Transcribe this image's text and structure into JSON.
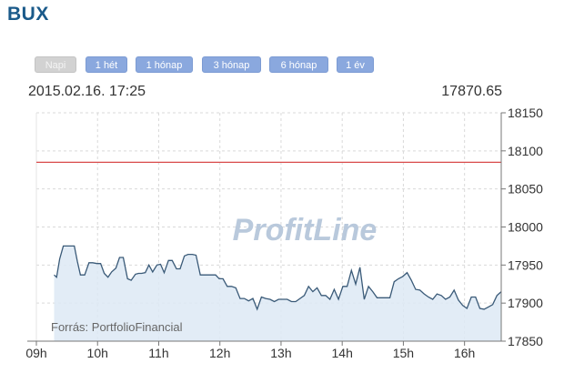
{
  "page_title": "BUX",
  "range_buttons": [
    {
      "label": "Napi",
      "active": true
    },
    {
      "label": "1 hét",
      "active": false
    },
    {
      "label": "1 hónap",
      "active": false
    },
    {
      "label": "3 hónap",
      "active": false
    },
    {
      "label": "6 hónap",
      "active": false
    },
    {
      "label": "1 év",
      "active": false
    }
  ],
  "info": {
    "datetime": "2015.02.16. 17:25",
    "last_value": "17870.65"
  },
  "watermark": "ProfitLine",
  "source_text": "Forrás: PortfolioFinancial",
  "colors": {
    "line": "#3a5a78",
    "area": "#dde9f5",
    "reference_line": "#d94a4a",
    "buttons": "#8aa8de"
  },
  "chart_data": {
    "type": "area",
    "title": "BUX",
    "xlabel": "",
    "ylabel": "",
    "x_ticks": [
      "09h",
      "10h",
      "11h",
      "12h",
      "13h",
      "14h",
      "15h",
      "16h"
    ],
    "x_tick_values": [
      9,
      10,
      11,
      12,
      13,
      14,
      15,
      16
    ],
    "xlim": [
      9,
      16.6
    ],
    "y_ticks": [
      17850,
      17900,
      17950,
      18000,
      18050,
      18100,
      18150
    ],
    "ylim": [
      17850,
      18150
    ],
    "y_axis_side": "right",
    "grid": true,
    "reference_line": 18085,
    "series": [
      {
        "x": [
          9.29,
          9.33,
          9.38,
          9.44,
          9.5,
          9.55,
          9.62,
          9.67,
          9.72,
          9.79,
          9.86,
          9.92,
          9.99,
          10.05,
          10.11,
          10.17,
          10.23,
          10.3,
          10.36,
          10.42,
          10.49,
          10.55,
          10.62,
          10.67,
          10.72,
          10.78,
          10.84,
          10.9,
          10.97,
          11.03,
          11.09,
          11.16,
          11.22,
          11.29,
          11.35,
          11.42,
          11.48,
          11.55,
          11.61,
          11.68,
          11.74,
          11.8,
          11.87,
          11.93,
          11.99,
          12.05,
          12.12,
          12.19,
          12.26,
          12.33,
          12.4,
          12.47,
          12.54,
          12.61,
          12.68,
          12.75,
          12.82,
          12.89,
          12.96,
          13.03,
          13.1,
          13.17,
          13.24,
          13.31,
          13.38,
          13.45,
          13.52,
          13.59,
          13.66,
          13.73,
          13.8,
          13.87,
          13.94,
          14.01,
          14.08,
          14.15,
          14.22,
          14.29,
          14.36,
          14.43,
          14.5,
          14.57,
          14.64,
          14.71,
          14.78,
          14.85,
          14.92,
          14.99,
          15.06,
          15.13,
          15.2,
          15.27,
          15.34,
          15.41,
          15.48,
          15.55,
          15.62,
          15.69,
          15.76,
          15.83,
          15.9,
          15.97,
          16.04,
          16.11,
          16.18,
          16.25,
          16.32,
          16.39,
          16.46,
          16.53,
          16.6
        ],
        "values": [
          17937,
          17934,
          17958,
          17975,
          17975,
          17975,
          17975,
          17955,
          17937,
          17937,
          17953,
          17953,
          17952,
          17952,
          17939,
          17934,
          17941,
          17946,
          17960,
          17960,
          17932,
          17930,
          17938,
          17939,
          17939,
          17940,
          17950,
          17941,
          17950,
          17951,
          17940,
          17956,
          17956,
          17945,
          17945,
          17962,
          17964,
          17964,
          17963,
          17937,
          17937,
          17937,
          17937,
          17937,
          17932,
          17932,
          17922,
          17922,
          17920,
          17906,
          17906,
          17903,
          17906,
          17892,
          17908,
          17906,
          17905,
          17902,
          17905,
          17905,
          17905,
          17902,
          17902,
          17906,
          17910,
          17922,
          17915,
          17920,
          17910,
          17910,
          17905,
          17918,
          17905,
          17922,
          17922,
          17943,
          17925,
          17947,
          17905,
          17922,
          17915,
          17907,
          17907,
          17907,
          17907,
          17928,
          17932,
          17935,
          17940,
          17930,
          17918,
          17917,
          17912,
          17908,
          17905,
          17912,
          17910,
          17905,
          17908,
          17917,
          17904,
          17897,
          17893,
          17908,
          17908,
          17893,
          17892,
          17895,
          17898,
          17910,
          17915
        ]
      }
    ]
  }
}
